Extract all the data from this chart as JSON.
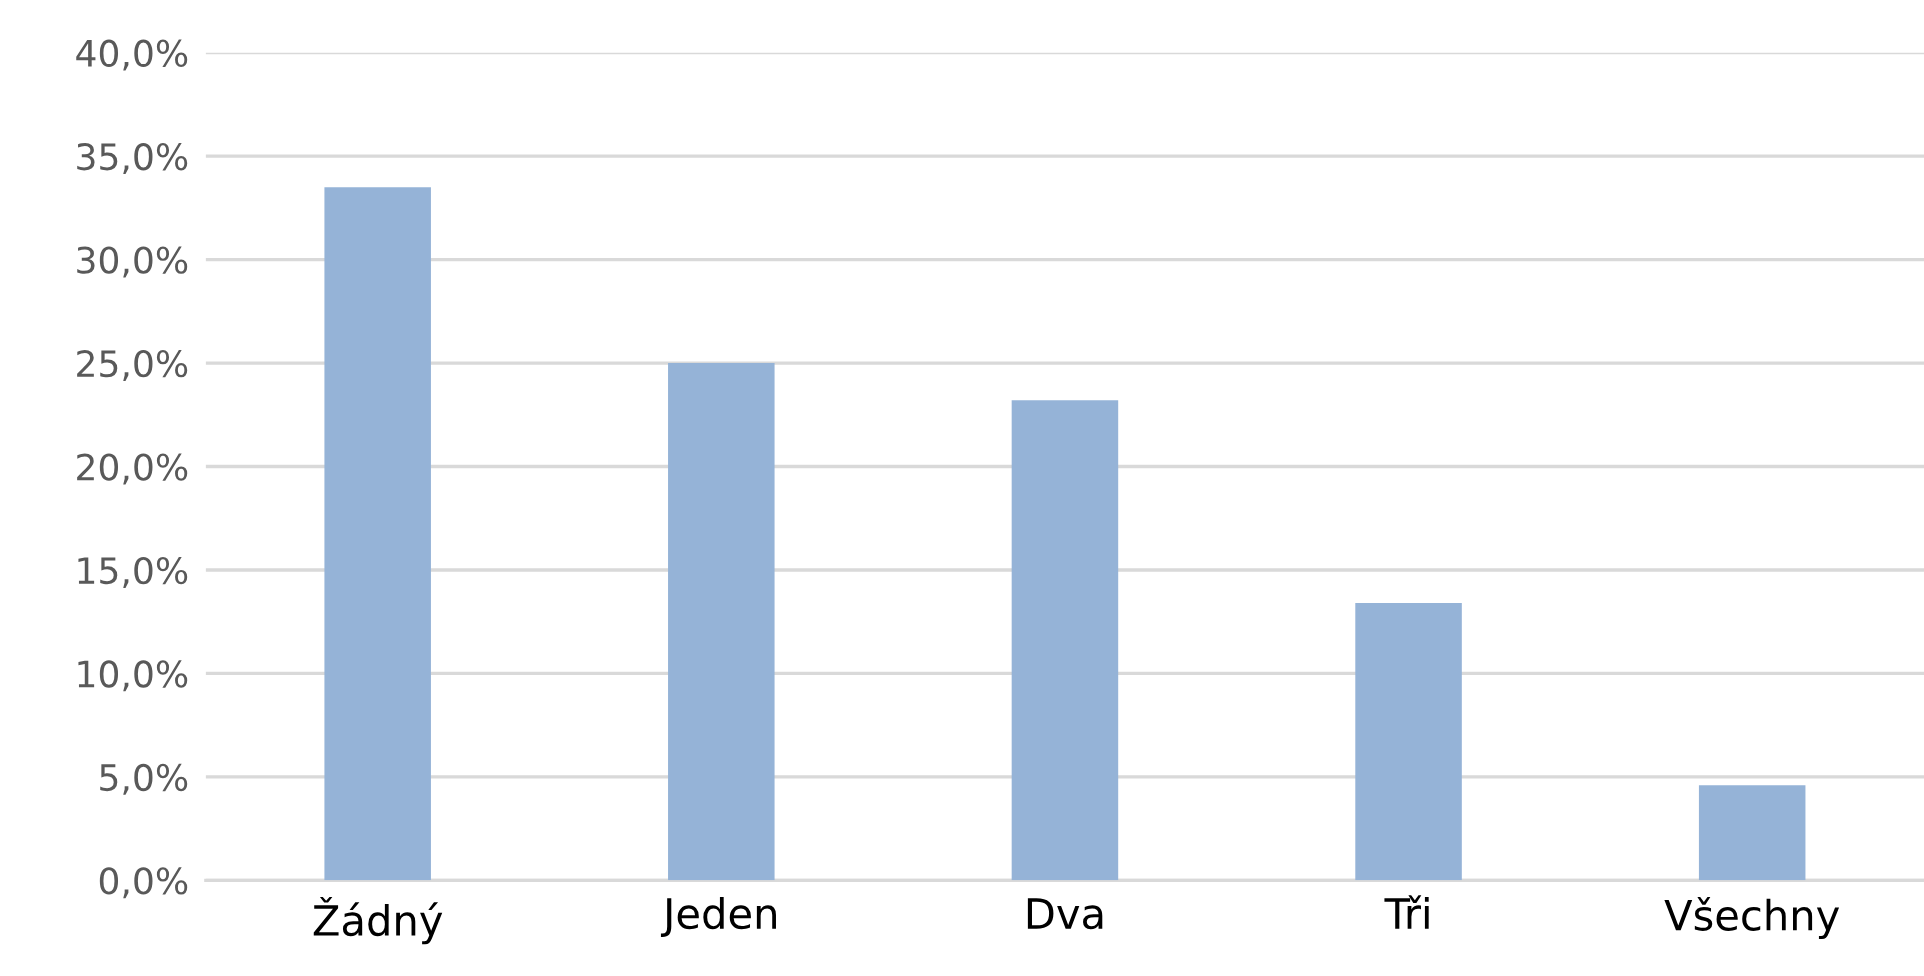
{
  "chart_data": {
    "type": "bar",
    "categories": [
      "Žádný",
      "Jeden",
      "Dva",
      "Tři",
      "Všechny"
    ],
    "values": [
      33.5,
      25.0,
      23.2,
      13.4,
      4.6
    ],
    "color": "#95b3d7",
    "ylim": [
      0,
      40
    ],
    "yticks": [
      {
        "value": 0,
        "label": "0,0%"
      },
      {
        "value": 5,
        "label": "5,0%"
      },
      {
        "value": 10,
        "label": "10,0%"
      },
      {
        "value": 15,
        "label": "15,0%"
      },
      {
        "value": 20,
        "label": "20,0%"
      },
      {
        "value": 25,
        "label": "25,0%"
      },
      {
        "value": 30,
        "label": "30,0%"
      },
      {
        "value": 35,
        "label": "35,0%"
      },
      {
        "value": 40,
        "label": "40,0%"
      }
    ],
    "grid": "y",
    "legend": false
  }
}
